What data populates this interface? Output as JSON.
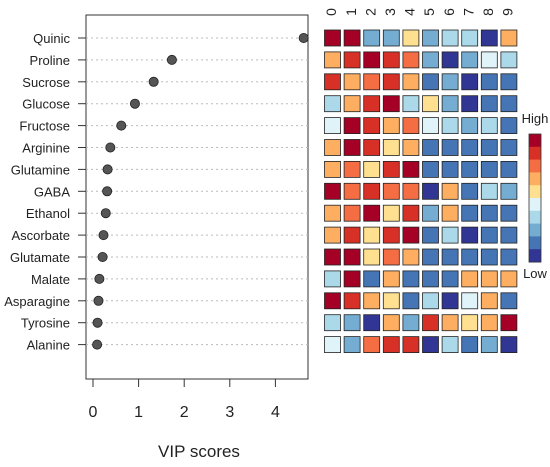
{
  "chart_data": {
    "type": "scatter",
    "title": "",
    "xlabel": "VIP scores",
    "ylabel": "",
    "xlim": [
      -0.3,
      4.8
    ],
    "xticks": [
      0,
      1,
      2,
      3,
      4
    ],
    "grid": "horizontal dotted",
    "categories": [
      "Quinic",
      "Proline",
      "Sucrose",
      "Glucose",
      "Fructose",
      "Arginine",
      "Glutamine",
      "GABA",
      "Ethanol",
      "Ascorbate",
      "Glutamate",
      "Malate",
      "Asparagine",
      "Tyrosine",
      "Alanine"
    ],
    "values": [
      4.62,
      1.73,
      1.33,
      0.92,
      0.62,
      0.38,
      0.32,
      0.31,
      0.28,
      0.23,
      0.21,
      0.14,
      0.12,
      0.1,
      0.09
    ],
    "point_color": "#555555",
    "heatmap": {
      "columns": [
        "0",
        "1",
        "2",
        "3",
        "4",
        "5",
        "6",
        "7",
        "8",
        "9"
      ],
      "levels": [
        [
          10,
          10,
          3,
          3,
          6,
          3,
          4,
          4,
          1,
          7
        ],
        [
          7,
          9,
          10,
          9,
          8,
          3,
          1,
          3,
          5,
          4
        ],
        [
          9,
          7,
          8,
          9,
          7,
          2,
          3,
          1,
          2,
          2
        ],
        [
          4,
          7,
          9,
          10,
          4,
          6,
          3,
          1,
          2,
          2
        ],
        [
          5,
          10,
          9,
          7,
          8,
          5,
          4,
          3,
          4,
          2
        ],
        [
          7,
          10,
          9,
          6,
          7,
          2,
          2,
          2,
          2,
          2
        ],
        [
          7,
          8,
          6,
          9,
          10,
          2,
          2,
          2,
          2,
          2
        ],
        [
          10,
          8,
          9,
          8,
          8,
          1,
          7,
          2,
          4,
          3
        ],
        [
          7,
          8,
          10,
          6,
          9,
          3,
          7,
          2,
          2,
          2
        ],
        [
          7,
          9,
          6,
          9,
          10,
          2,
          4,
          1,
          2,
          2
        ],
        [
          10,
          10,
          6,
          8,
          7,
          2,
          2,
          2,
          2,
          2
        ],
        [
          4,
          10,
          2,
          7,
          2,
          2,
          2,
          7,
          7,
          7
        ],
        [
          10,
          9,
          7,
          6,
          2,
          4,
          1,
          5,
          7,
          2
        ],
        [
          4,
          3,
          1,
          7,
          3,
          9,
          7,
          6,
          7,
          10
        ],
        [
          5,
          3,
          8,
          9,
          9,
          1,
          4,
          2,
          3,
          1
        ]
      ],
      "palette": [
        "#313695",
        "#4575b4",
        "#74add1",
        "#abd9e9",
        "#e0f3f8",
        "#fee090",
        "#fdae61",
        "#f46d43",
        "#d73027",
        "#a50026"
      ],
      "legend": {
        "high": "High",
        "low": "Low"
      }
    }
  }
}
